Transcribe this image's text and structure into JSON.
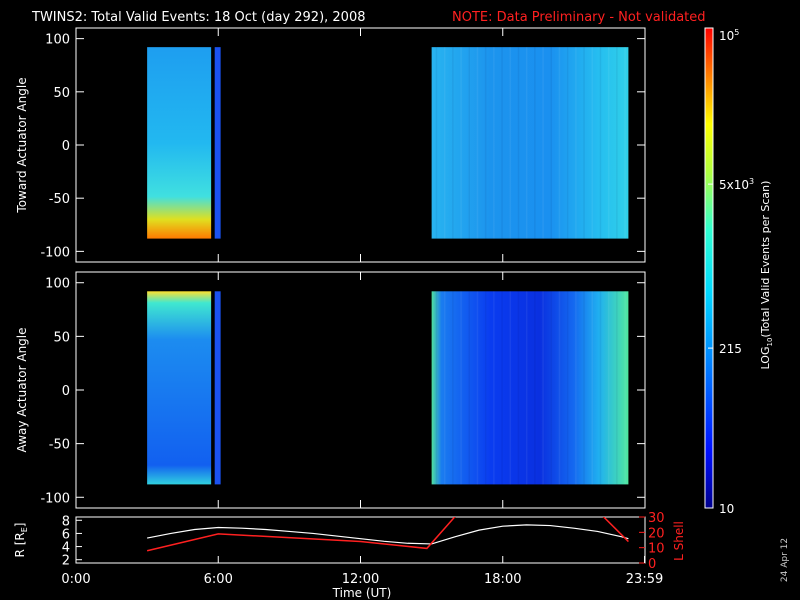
{
  "header": {
    "title": "TWINS2: Total Valid Events: 18 Oct (day 292), 2008",
    "note": "NOTE: Data Preliminary - Not validated",
    "note_color": "#ff2020"
  },
  "colorbar": {
    "label_main": "LOG",
    "label_sub": "10",
    "label_rest": "(Total Valid Events per Scan)",
    "ticks": [
      {
        "label": "10",
        "value": 10
      },
      {
        "label": "215",
        "value": 215
      },
      {
        "label": "5x10",
        "sup": "3",
        "value": 5000
      },
      {
        "label": "10",
        "sup": "5",
        "value": 100000
      }
    ],
    "range": [
      10,
      100000
    ],
    "scale": "log"
  },
  "date_stamp": "24 Apr 12",
  "chart_data": [
    {
      "type": "heatmap",
      "name": "toward",
      "ylabel": "Toward Actuator Angle",
      "ylim": [
        -110,
        110
      ],
      "yticks": [
        -100,
        -50,
        0,
        50,
        100
      ],
      "xlim": [
        0,
        24
      ],
      "data_blocks": [
        {
          "t_start": 3.0,
          "t_end": 5.7,
          "angle_range": [
            -88,
            92
          ]
        },
        {
          "t_start": 5.85,
          "t_end": 6.1,
          "angle_range": [
            -88,
            92
          ]
        },
        {
          "t_start": 15.0,
          "t_end": 23.3,
          "angle_range": [
            -88,
            92
          ]
        }
      ]
    },
    {
      "type": "heatmap",
      "name": "away",
      "ylabel": "Away Actuator Angle",
      "ylim": [
        -110,
        110
      ],
      "yticks": [
        -100,
        -50,
        0,
        50,
        100
      ],
      "xlim": [
        0,
        24
      ],
      "data_blocks": [
        {
          "t_start": 3.0,
          "t_end": 5.7,
          "angle_range": [
            -88,
            92
          ]
        },
        {
          "t_start": 5.85,
          "t_end": 6.1,
          "angle_range": [
            -88,
            92
          ]
        },
        {
          "t_start": 15.0,
          "t_end": 23.3,
          "angle_range": [
            -88,
            92
          ]
        }
      ]
    },
    {
      "type": "line",
      "name": "orbit",
      "xlabel": "Time (UT)",
      "xlim": [
        0,
        24
      ],
      "xticks": [
        {
          "value": 0,
          "label": "0:00"
        },
        {
          "value": 6,
          "label": "6:00"
        },
        {
          "value": 12,
          "label": "12:00"
        },
        {
          "value": 18,
          "label": "18:00"
        },
        {
          "value": 23.98,
          "label": "23:59"
        }
      ],
      "left_axis": {
        "label": "R [R",
        "label_sub": "E",
        "label_end": "]",
        "ylim": [
          1.5,
          8.5
        ],
        "ticks": [
          2,
          4,
          6,
          8
        ]
      },
      "right_axis": {
        "label": "L Shell",
        "ylim": [
          0,
          30
        ],
        "ticks": [
          0,
          10,
          20,
          30
        ],
        "color": "#ff2020"
      },
      "series": [
        {
          "axis": "left",
          "color": "#ffffff",
          "x": [
            3,
            4,
            5,
            6,
            7,
            8,
            9,
            10,
            11,
            12,
            13,
            14,
            15,
            16,
            17,
            18,
            19,
            20,
            21,
            22,
            23,
            23.3
          ],
          "y": [
            5.3,
            6.0,
            6.6,
            6.9,
            6.8,
            6.6,
            6.3,
            6.0,
            5.6,
            5.2,
            4.8,
            4.5,
            4.4,
            5.5,
            6.5,
            7.1,
            7.3,
            7.2,
            6.8,
            6.3,
            5.5,
            5.2
          ]
        },
        {
          "axis": "right",
          "color": "#ff2020",
          "segments": [
            {
              "x": [
                3,
                6,
                12,
                14.8,
                16.2
              ],
              "y": [
                8,
                19,
                14,
                9.5,
                34
              ]
            },
            {
              "x": [
                22.0,
                23.3
              ],
              "y": [
                34,
                14
              ]
            }
          ]
        }
      ]
    }
  ]
}
